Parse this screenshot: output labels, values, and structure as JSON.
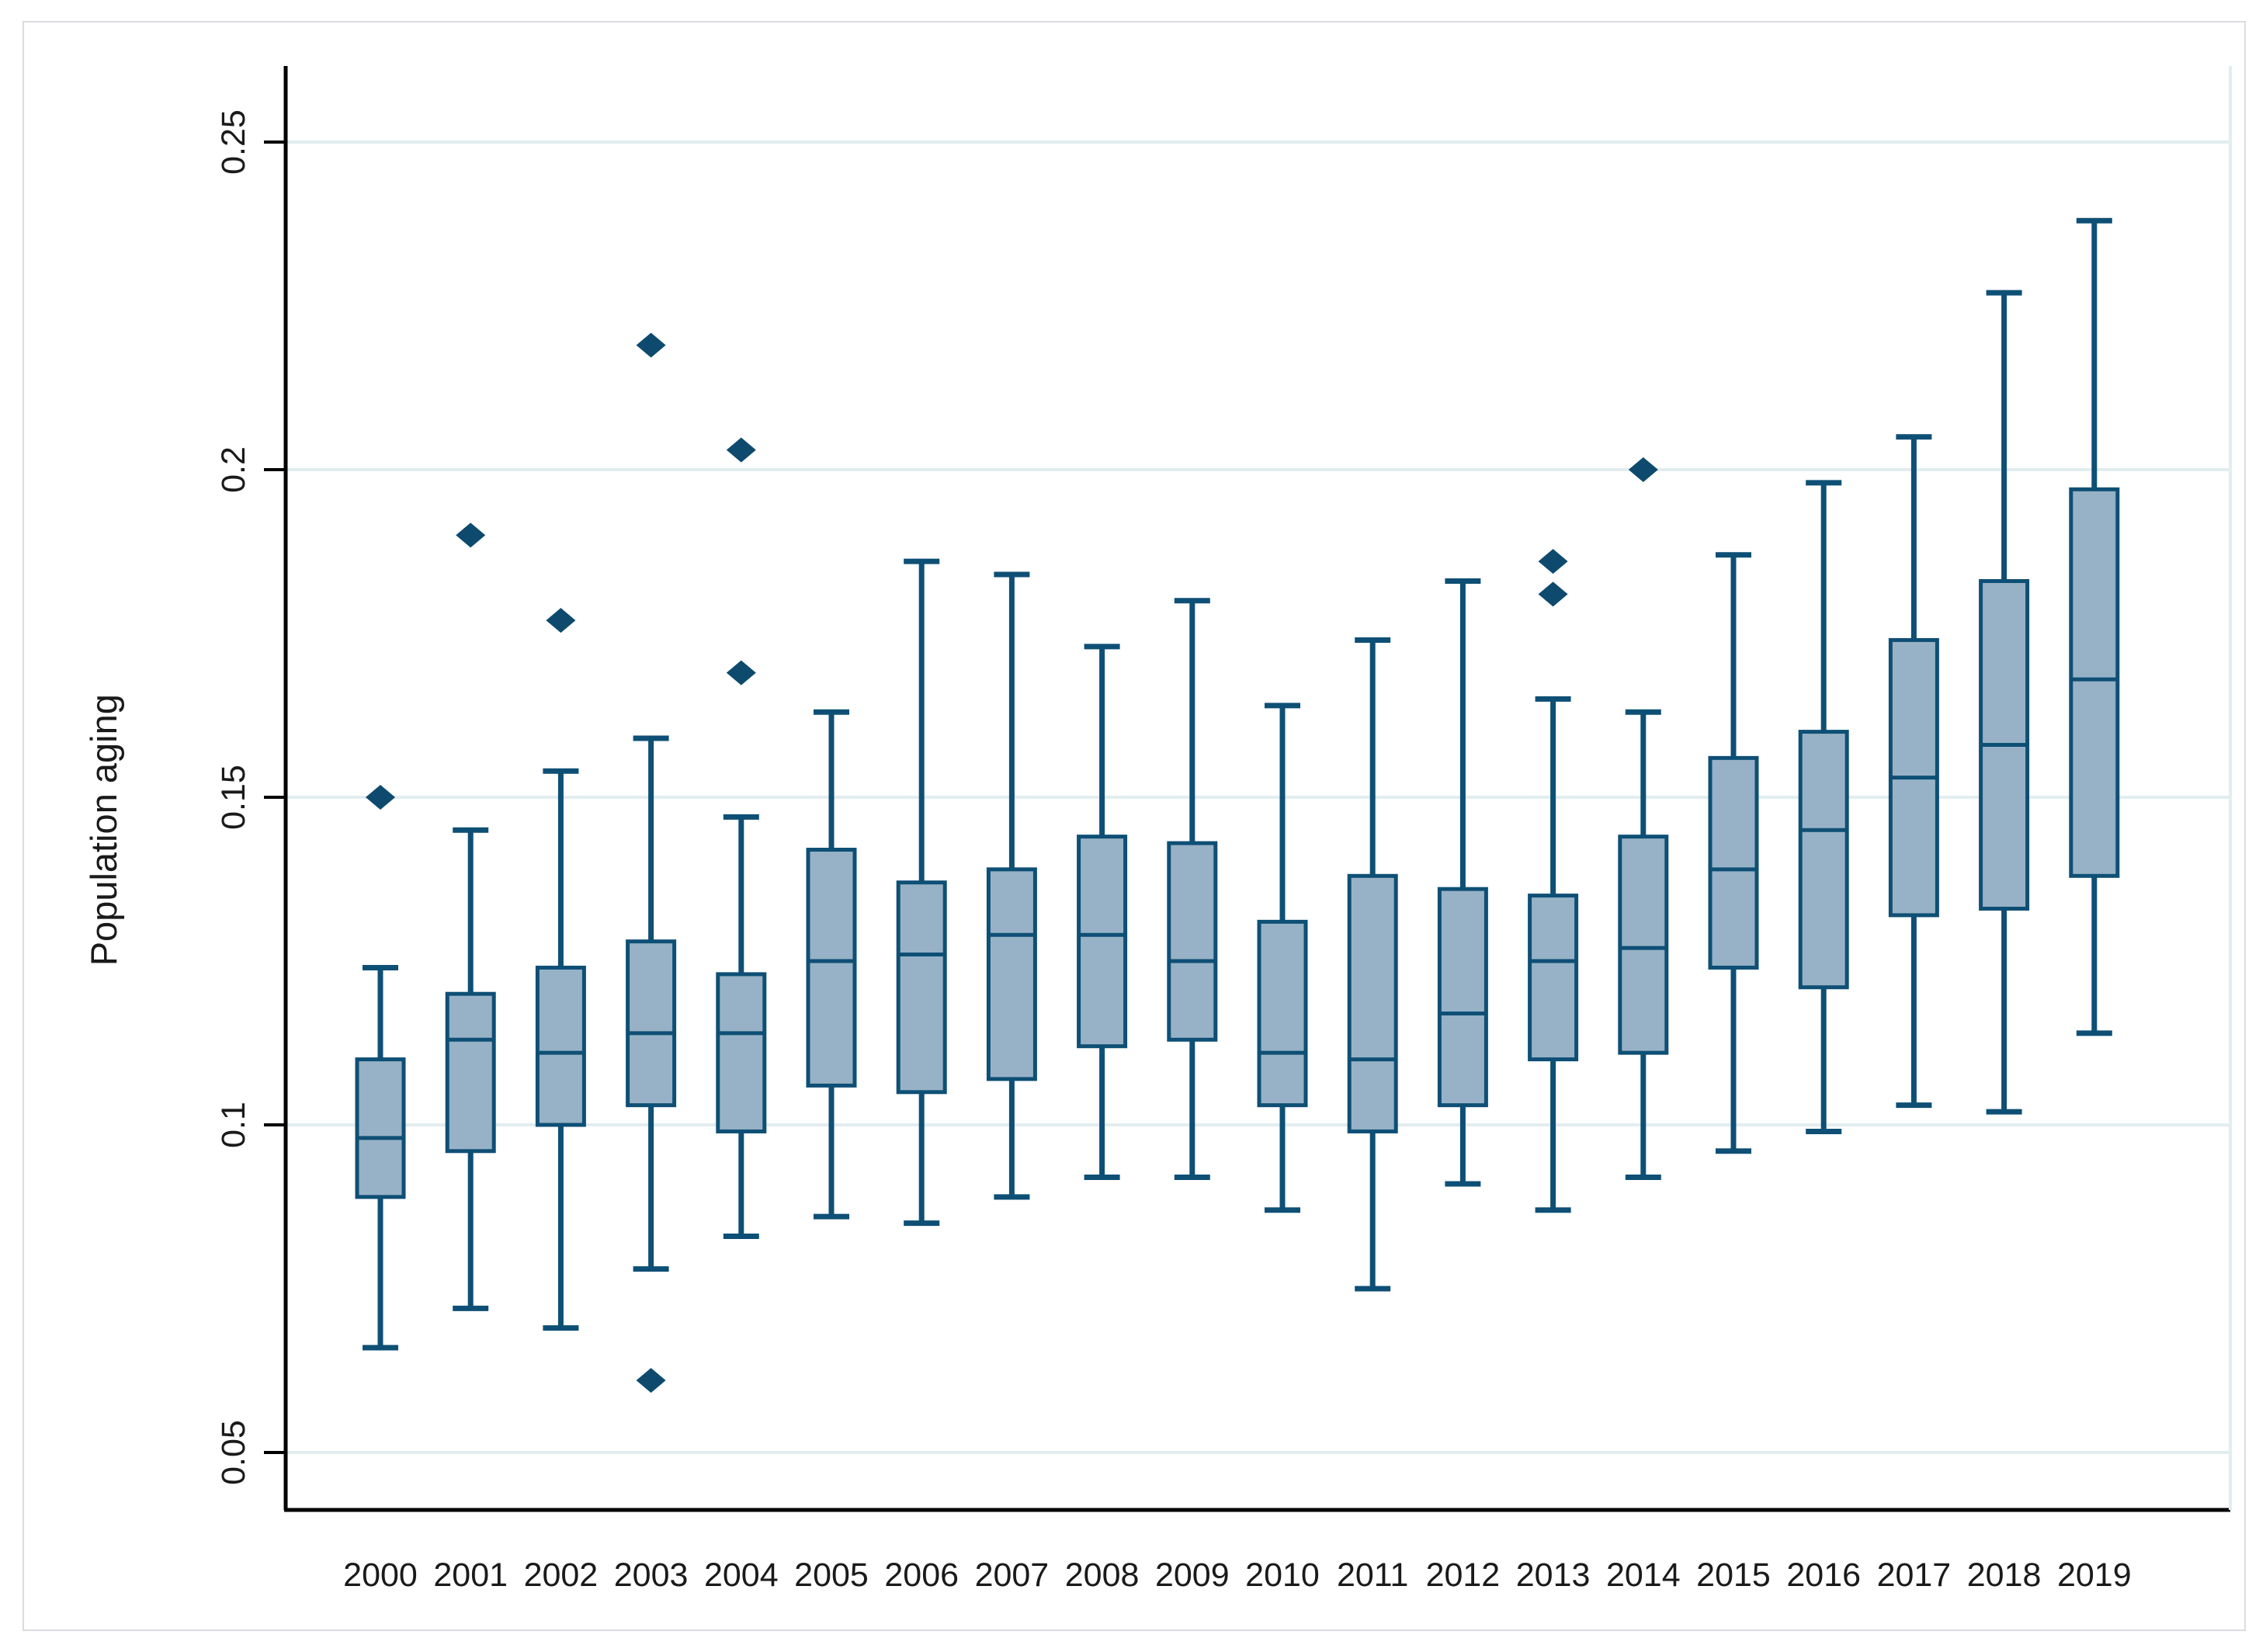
{
  "figure": {
    "ylabel": "Population aging",
    "background": "#ffffff",
    "frame_color": "#d9dde0",
    "axis_color": "#000000",
    "gridline_color": "#e2edf0",
    "box_fill": "#97b2c6",
    "box_stroke": "#0e4f75",
    "outlier_color": "#0d4a6e",
    "text_color": "#1a1a1a"
  },
  "chart_data": {
    "type": "box",
    "title": "",
    "xlabel": "",
    "ylabel": "Population aging",
    "grid": true,
    "legend": "none",
    "ylim": [
      0.041,
      0.262
    ],
    "yticks": [
      0.05,
      0.1,
      0.15,
      0.2,
      0.25
    ],
    "ytick_labels": [
      "0.05",
      "0.1",
      "0.15",
      "0.2",
      "0.25"
    ],
    "categories": [
      "2000",
      "2001",
      "2002",
      "2003",
      "2004",
      "2005",
      "2006",
      "2007",
      "2008",
      "2009",
      "2010",
      "2011",
      "2012",
      "2013",
      "2014",
      "2015",
      "2016",
      "2017",
      "2018",
      "2019"
    ],
    "series": [
      {
        "year": "2000",
        "low": 0.066,
        "q1": 0.089,
        "median": 0.098,
        "q3": 0.11,
        "high": 0.124,
        "outliers": [
          0.15
        ]
      },
      {
        "year": "2001",
        "low": 0.072,
        "q1": 0.096,
        "median": 0.113,
        "q3": 0.12,
        "high": 0.145,
        "outliers": [
          0.19
        ]
      },
      {
        "year": "2002",
        "low": 0.069,
        "q1": 0.1,
        "median": 0.111,
        "q3": 0.124,
        "high": 0.154,
        "outliers": [
          0.177
        ]
      },
      {
        "year": "2003",
        "low": 0.078,
        "q1": 0.103,
        "median": 0.114,
        "q3": 0.128,
        "high": 0.159,
        "outliers": [
          0.219,
          0.061
        ]
      },
      {
        "year": "2004",
        "low": 0.083,
        "q1": 0.099,
        "median": 0.114,
        "q3": 0.123,
        "high": 0.147,
        "outliers": [
          0.203,
          0.169
        ]
      },
      {
        "year": "2005",
        "low": 0.086,
        "q1": 0.106,
        "median": 0.125,
        "q3": 0.142,
        "high": 0.163,
        "outliers": []
      },
      {
        "year": "2006",
        "low": 0.085,
        "q1": 0.105,
        "median": 0.126,
        "q3": 0.137,
        "high": 0.186,
        "outliers": []
      },
      {
        "year": "2007",
        "low": 0.089,
        "q1": 0.107,
        "median": 0.129,
        "q3": 0.139,
        "high": 0.184,
        "outliers": []
      },
      {
        "year": "2008",
        "low": 0.092,
        "q1": 0.112,
        "median": 0.129,
        "q3": 0.144,
        "high": 0.173,
        "outliers": []
      },
      {
        "year": "2009",
        "low": 0.092,
        "q1": 0.113,
        "median": 0.125,
        "q3": 0.143,
        "high": 0.18,
        "outliers": []
      },
      {
        "year": "2010",
        "low": 0.087,
        "q1": 0.103,
        "median": 0.111,
        "q3": 0.131,
        "high": 0.164,
        "outliers": []
      },
      {
        "year": "2011",
        "low": 0.075,
        "q1": 0.099,
        "median": 0.11,
        "q3": 0.138,
        "high": 0.174,
        "outliers": []
      },
      {
        "year": "2012",
        "low": 0.091,
        "q1": 0.103,
        "median": 0.117,
        "q3": 0.136,
        "high": 0.183,
        "outliers": []
      },
      {
        "year": "2013",
        "low": 0.087,
        "q1": 0.11,
        "median": 0.125,
        "q3": 0.135,
        "high": 0.165,
        "outliers": [
          0.186,
          0.181
        ]
      },
      {
        "year": "2014",
        "low": 0.092,
        "q1": 0.111,
        "median": 0.127,
        "q3": 0.144,
        "high": 0.163,
        "outliers": [
          0.2
        ]
      },
      {
        "year": "2015",
        "low": 0.096,
        "q1": 0.124,
        "median": 0.139,
        "q3": 0.156,
        "high": 0.187,
        "outliers": []
      },
      {
        "year": "2016",
        "low": 0.099,
        "q1": 0.121,
        "median": 0.145,
        "q3": 0.16,
        "high": 0.198,
        "outliers": []
      },
      {
        "year": "2017",
        "low": 0.103,
        "q1": 0.132,
        "median": 0.153,
        "q3": 0.174,
        "high": 0.205,
        "outliers": []
      },
      {
        "year": "2018",
        "low": 0.102,
        "q1": 0.133,
        "median": 0.158,
        "q3": 0.183,
        "high": 0.227,
        "outliers": []
      },
      {
        "year": "2019",
        "low": 0.114,
        "q1": 0.138,
        "median": 0.168,
        "q3": 0.197,
        "high": 0.238,
        "outliers": []
      }
    ]
  }
}
